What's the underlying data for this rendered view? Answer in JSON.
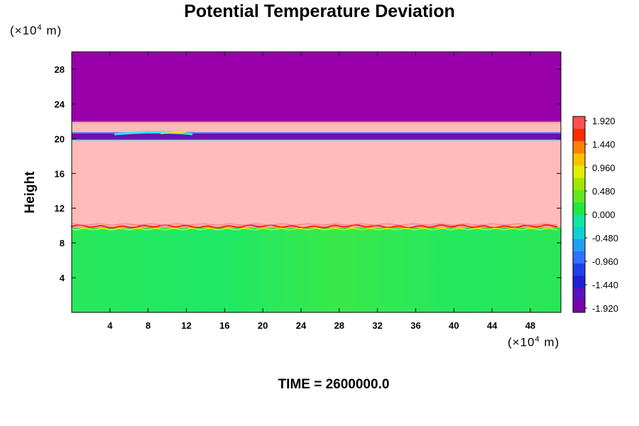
{
  "chart_data": {
    "type": "heatmap",
    "title": "Potential Temperature Deviation",
    "ylabel": "Height",
    "xunit": {
      "prefix": "(×10",
      "exp": "4",
      "suffix": " m)"
    },
    "yunit": {
      "prefix": "(×10",
      "exp": "4",
      "suffix": " m)"
    },
    "xlim": [
      0,
      51.2
    ],
    "ylim": [
      0,
      30
    ],
    "xticks": [
      "4",
      "8",
      "12",
      "16",
      "20",
      "24",
      "28",
      "32",
      "36",
      "40",
      "44",
      "48"
    ],
    "yticks": [
      "4",
      "8",
      "12",
      "16",
      "20",
      "24",
      "28"
    ],
    "bands": [
      {
        "from": 0,
        "to": 9.8,
        "value": 0.0,
        "color": "#22e85a"
      },
      {
        "from": 9.8,
        "to": 19.9,
        "value": 1.92,
        "color": "#ffbaba"
      },
      {
        "from": 19.9,
        "to": 20.6,
        "value": -1.7,
        "color": "#7010b0"
      },
      {
        "from": 20.6,
        "to": 22.0,
        "value": 1.92,
        "color": "#ffbaba"
      },
      {
        "from": 22.0,
        "to": 30,
        "value": -1.92,
        "color": "#9900aa"
      }
    ],
    "colorbar": {
      "labels": [
        "1.920",
        "1.440",
        "0.960",
        "0.480",
        "0.000",
        "-0.480",
        "-0.960",
        "-1.440",
        "-1.920"
      ],
      "min": -1.92,
      "max": 1.92
    },
    "time_label": "TIME = 2600000.0"
  }
}
